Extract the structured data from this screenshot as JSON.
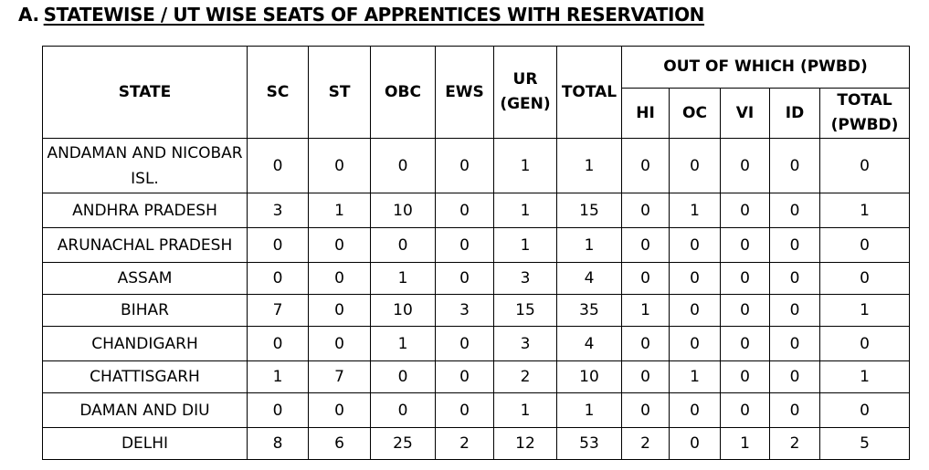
{
  "heading": {
    "prefix": "A.",
    "title": "STATEWISE / UT WISE SEATS OF APPRENTICES WITH RESERVATION"
  },
  "table": {
    "headers": {
      "state": "STATE",
      "sc": "SC",
      "st": "ST",
      "obc": "OBC",
      "ews": "EWS",
      "ur": "UR (GEN)",
      "total": "TOTAL",
      "pwbd_group": "OUT OF WHICH (PWBD)",
      "hi": "HI",
      "oc": "OC",
      "vi": "VI",
      "id": "ID",
      "total_pwbd": "TOTAL (PWBD)"
    },
    "rows": [
      {
        "state": "ANDAMAN AND NICOBAR ISL.",
        "sc": "0",
        "st": "0",
        "obc": "0",
        "ews": "0",
        "ur": "1",
        "total": "1",
        "hi": "0",
        "oc": "0",
        "vi": "0",
        "id": "0",
        "total_pwbd": "0"
      },
      {
        "state": "ANDHRA PRADESH",
        "sc": "3",
        "st": "1",
        "obc": "10",
        "ews": "0",
        "ur": "1",
        "total": "15",
        "hi": "0",
        "oc": "1",
        "vi": "0",
        "id": "0",
        "total_pwbd": "1"
      },
      {
        "state": "ARUNACHAL PRADESH",
        "sc": "0",
        "st": "0",
        "obc": "0",
        "ews": "0",
        "ur": "1",
        "total": "1",
        "hi": "0",
        "oc": "0",
        "vi": "0",
        "id": "0",
        "total_pwbd": "0"
      },
      {
        "state": "ASSAM",
        "sc": "0",
        "st": "0",
        "obc": "1",
        "ews": "0",
        "ur": "3",
        "total": "4",
        "hi": "0",
        "oc": "0",
        "vi": "0",
        "id": "0",
        "total_pwbd": "0"
      },
      {
        "state": "BIHAR",
        "sc": "7",
        "st": "0",
        "obc": "10",
        "ews": "3",
        "ur": "15",
        "total": "35",
        "hi": "1",
        "oc": "0",
        "vi": "0",
        "id": "0",
        "total_pwbd": "1"
      },
      {
        "state": "CHANDIGARH",
        "sc": "0",
        "st": "0",
        "obc": "1",
        "ews": "0",
        "ur": "3",
        "total": "4",
        "hi": "0",
        "oc": "0",
        "vi": "0",
        "id": "0",
        "total_pwbd": "0"
      },
      {
        "state": "CHATTISGARH",
        "sc": "1",
        "st": "7",
        "obc": "0",
        "ews": "0",
        "ur": "2",
        "total": "10",
        "hi": "0",
        "oc": "1",
        "vi": "0",
        "id": "0",
        "total_pwbd": "1"
      },
      {
        "state": "DAMAN AND DIU",
        "sc": "0",
        "st": "0",
        "obc": "0",
        "ews": "0",
        "ur": "1",
        "total": "1",
        "hi": "0",
        "oc": "0",
        "vi": "0",
        "id": "0",
        "total_pwbd": "0"
      },
      {
        "state": "DELHI",
        "sc": "8",
        "st": "6",
        "obc": "25",
        "ews": "2",
        "ur": "12",
        "total": "53",
        "hi": "2",
        "oc": "0",
        "vi": "1",
        "id": "2",
        "total_pwbd": "5"
      }
    ]
  }
}
